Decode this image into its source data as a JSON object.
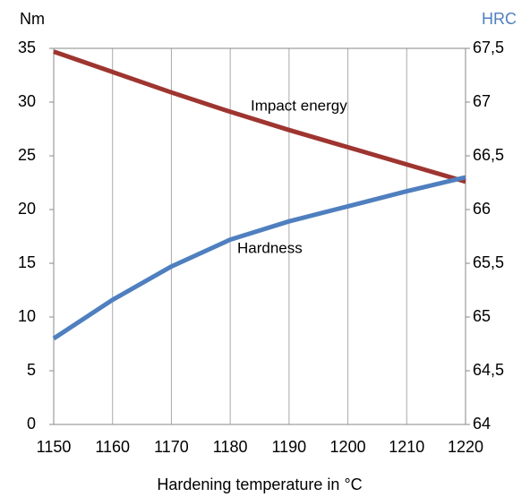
{
  "chart_data": {
    "type": "line",
    "ylabel": "Nm",
    "y2label": "HRC",
    "xlabel": "Hardening temperature in °C",
    "x": [
      1150,
      1160,
      1170,
      1180,
      1190,
      1200,
      1210,
      1220
    ],
    "series": [
      {
        "name": "Impact energy",
        "color": "#9e3530",
        "values": [
          34.7,
          32.8,
          30.9,
          29.1,
          27.4,
          25.8,
          24.2,
          22.6
        ]
      },
      {
        "name": "Hardness",
        "color": "#4f7fbf",
        "axis": "y2",
        "values": [
          64.8,
          65.16,
          65.47,
          65.72,
          65.89,
          66.03,
          66.17,
          66.3
        ]
      }
    ],
    "xlim": [
      1150,
      1220
    ],
    "xticks": [
      1150,
      1160,
      1170,
      1180,
      1190,
      1200,
      1210,
      1220
    ],
    "ylim": [
      0,
      35
    ],
    "yticks": [
      0,
      5,
      10,
      15,
      20,
      25,
      30,
      35
    ],
    "y2lim": [
      64,
      67.5
    ],
    "y2ticks": [
      64,
      {
        "value": 64.5,
        "label": "64,5"
      },
      65,
      {
        "value": 65.5,
        "label": "65,5"
      },
      66,
      {
        "value": 66.5,
        "label": "66,5"
      },
      67,
      {
        "value": 67.5,
        "label": "67,5"
      }
    ],
    "grid": "x"
  }
}
